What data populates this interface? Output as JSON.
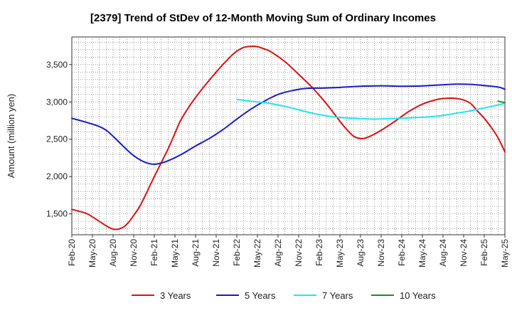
{
  "chart_data": {
    "type": "line",
    "title": "[2379]  Trend of StDev of 12-Month Moving Sum of Ordinary Incomes",
    "ylabel": "Amount (million yen)",
    "xlabel": "",
    "ylim": [
      1220,
      3870
    ],
    "yticks": [
      1500,
      2000,
      2500,
      3000,
      3500
    ],
    "ytick_labels": [
      "1,500",
      "2,000",
      "2,500",
      "3,000",
      "3,500"
    ],
    "x_categories": [
      "Feb-20",
      "May-20",
      "Aug-20",
      "Nov-20",
      "Feb-21",
      "May-21",
      "Aug-21",
      "Nov-21",
      "Feb-22",
      "May-22",
      "Aug-22",
      "Nov-22",
      "Feb-23",
      "May-23",
      "Aug-23",
      "Nov-23",
      "Feb-24",
      "May-24",
      "Aug-24",
      "Nov-24",
      "Feb-25",
      "May-25"
    ],
    "grid": true,
    "legend_position": "bottom",
    "series": [
      {
        "name": "3 Years",
        "color": "#dd1111",
        "values": [
          [
            0,
            1560
          ],
          [
            2,
            1510
          ],
          [
            3,
            1460
          ],
          [
            5,
            1340
          ],
          [
            6,
            1295
          ],
          [
            7,
            1300
          ],
          [
            8,
            1360
          ],
          [
            9,
            1480
          ],
          [
            10,
            1620
          ],
          [
            12,
            2000
          ],
          [
            14,
            2370
          ],
          [
            15,
            2580
          ],
          [
            16,
            2780
          ],
          [
            18,
            3060
          ],
          [
            21,
            3400
          ],
          [
            23,
            3600
          ],
          [
            24,
            3680
          ],
          [
            25,
            3730
          ],
          [
            26,
            3745
          ],
          [
            27,
            3740
          ],
          [
            28,
            3710
          ],
          [
            29,
            3670
          ],
          [
            31,
            3540
          ],
          [
            33,
            3370
          ],
          [
            35,
            3190
          ],
          [
            37,
            2980
          ],
          [
            39,
            2740
          ],
          [
            40,
            2630
          ],
          [
            41,
            2540
          ],
          [
            42,
            2510
          ],
          [
            43,
            2525
          ],
          [
            45,
            2620
          ],
          [
            47,
            2740
          ],
          [
            49,
            2870
          ],
          [
            51,
            2970
          ],
          [
            53,
            3030
          ],
          [
            54,
            3045
          ],
          [
            55,
            3050
          ],
          [
            56,
            3045
          ],
          [
            57,
            3025
          ],
          [
            58,
            2980
          ],
          [
            59,
            2880
          ],
          [
            60,
            2780
          ],
          [
            61,
            2660
          ],
          [
            62,
            2520
          ],
          [
            63,
            2330
          ]
        ]
      },
      {
        "name": "5 Years",
        "color": "#1a1acc",
        "values": [
          [
            0,
            2780
          ],
          [
            2,
            2730
          ],
          [
            4,
            2670
          ],
          [
            5,
            2620
          ],
          [
            6,
            2540
          ],
          [
            7,
            2450
          ],
          [
            8,
            2360
          ],
          [
            9,
            2280
          ],
          [
            10,
            2220
          ],
          [
            11,
            2180
          ],
          [
            12,
            2165
          ],
          [
            13,
            2180
          ],
          [
            14,
            2210
          ],
          [
            16,
            2300
          ],
          [
            18,
            2410
          ],
          [
            20,
            2510
          ],
          [
            22,
            2630
          ],
          [
            24,
            2770
          ],
          [
            26,
            2900
          ],
          [
            28,
            3010
          ],
          [
            30,
            3100
          ],
          [
            32,
            3150
          ],
          [
            34,
            3180
          ],
          [
            36,
            3185
          ],
          [
            38,
            3190
          ],
          [
            40,
            3200
          ],
          [
            42,
            3210
          ],
          [
            44,
            3215
          ],
          [
            46,
            3215
          ],
          [
            48,
            3210
          ],
          [
            50,
            3212
          ],
          [
            52,
            3220
          ],
          [
            54,
            3230
          ],
          [
            56,
            3238
          ],
          [
            58,
            3235
          ],
          [
            60,
            3220
          ],
          [
            62,
            3200
          ],
          [
            63,
            3170
          ]
        ]
      },
      {
        "name": "7 Years",
        "color": "#22e5ee",
        "values": [
          [
            24,
            3035
          ],
          [
            26,
            3010
          ],
          [
            28,
            2990
          ],
          [
            30,
            2960
          ],
          [
            32,
            2920
          ],
          [
            34,
            2870
          ],
          [
            36,
            2830
          ],
          [
            38,
            2800
          ],
          [
            40,
            2785
          ],
          [
            42,
            2775
          ],
          [
            44,
            2770
          ],
          [
            46,
            2775
          ],
          [
            48,
            2780
          ],
          [
            50,
            2790
          ],
          [
            52,
            2800
          ],
          [
            54,
            2820
          ],
          [
            56,
            2850
          ],
          [
            58,
            2880
          ],
          [
            60,
            2920
          ],
          [
            62,
            2960
          ],
          [
            63,
            2980
          ]
        ]
      },
      {
        "name": "10 Years",
        "color": "#1e8c1e",
        "values": [
          [
            62,
            3010
          ],
          [
            63,
            2990
          ]
        ]
      }
    ]
  }
}
